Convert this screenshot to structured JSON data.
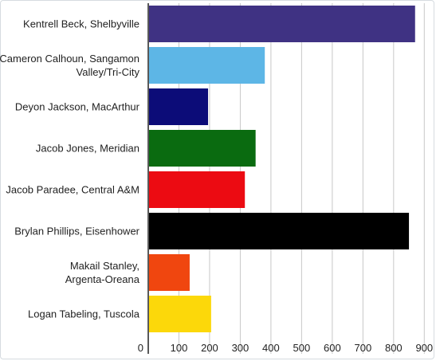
{
  "chart_data": {
    "type": "bar",
    "orientation": "horizontal",
    "categories": [
      "Kentrell Beck, Shelbyville",
      "Cameron Calhoun, Sangamon Valley/Tri-City",
      "Deyon Jackson, MacArthur",
      "Jacob Jones, Meridian",
      "Jacob Paradee, Central A&M",
      "Brylan Phillips, Eisenhower",
      "Makail Stanley, Argenta-Oreana",
      "Logan Tabeling, Tuscola"
    ],
    "values": [
      870,
      380,
      195,
      350,
      315,
      850,
      135,
      205
    ],
    "colors": [
      "#3f3283",
      "#5db6e6",
      "#0c0c78",
      "#0a6b10",
      "#ec0b12",
      "#000000",
      "#f0460f",
      "#fcd80a"
    ],
    "xlim": [
      0,
      920
    ],
    "x_ticks": [
      0,
      100,
      200,
      300,
      400,
      500,
      600,
      700,
      800,
      900
    ],
    "grid": true,
    "title": "",
    "xlabel": "",
    "ylabel": ""
  }
}
